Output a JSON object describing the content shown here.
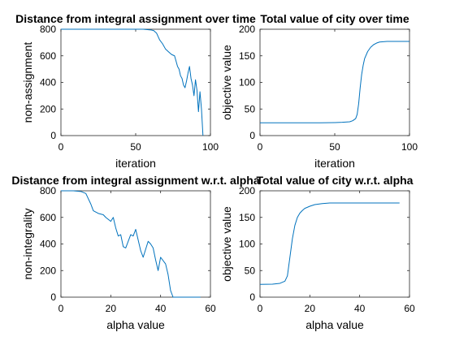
{
  "colors": {
    "series": "#0072BD",
    "axes": "#262626",
    "background": "#ffffff"
  },
  "chart_data": [
    {
      "type": "line",
      "title": "Distance from integral assignment over time",
      "xlabel": "iteration",
      "ylabel": "non-assignment",
      "xlim": [
        0,
        100
      ],
      "ylim": [
        0,
        800
      ],
      "xticks": [
        0,
        50,
        100
      ],
      "yticks": [
        0,
        200,
        400,
        600,
        800
      ],
      "grid": false,
      "x": [
        0,
        10,
        20,
        30,
        40,
        50,
        55,
        60,
        62,
        64,
        66,
        68,
        70,
        72,
        74,
        76,
        77,
        78,
        79,
        80,
        81,
        82,
        83,
        84,
        85,
        86,
        87,
        88,
        89,
        90,
        91,
        92,
        93,
        94,
        95
      ],
      "y": [
        800,
        800,
        800,
        800,
        800,
        800,
        800,
        795,
        790,
        770,
        720,
        690,
        650,
        630,
        610,
        600,
        560,
        520,
        500,
        450,
        430,
        380,
        360,
        410,
        470,
        520,
        430,
        380,
        300,
        420,
        340,
        180,
        330,
        200,
        0
      ]
    },
    {
      "type": "line",
      "title": "Total value of city over time",
      "xlabel": "iteration",
      "ylabel": "objective value",
      "xlim": [
        0,
        100
      ],
      "ylim": [
        0,
        200
      ],
      "xticks": [
        0,
        50,
        100
      ],
      "yticks": [
        0,
        50,
        100,
        150,
        200
      ],
      "grid": false,
      "x": [
        0,
        10,
        20,
        30,
        40,
        50,
        55,
        60,
        62,
        64,
        65,
        66,
        67,
        68,
        69,
        70,
        72,
        74,
        76,
        78,
        80,
        85,
        90,
        95,
        100
      ],
      "y": [
        24,
        24,
        24,
        24,
        24,
        24.5,
        25,
        26,
        28,
        32,
        40,
        60,
        90,
        115,
        132,
        145,
        158,
        166,
        171,
        174,
        176,
        177,
        177,
        177,
        177
      ]
    },
    {
      "type": "line",
      "title": "Distance from integral assignment w.r.t. alpha",
      "xlabel": "alpha value",
      "ylabel": "non-integrality",
      "xlim": [
        0,
        60
      ],
      "ylim": [
        0,
        800
      ],
      "xticks": [
        0,
        20,
        40,
        60
      ],
      "yticks": [
        0,
        200,
        400,
        600,
        800
      ],
      "grid": false,
      "x": [
        0,
        5,
        8,
        10,
        12,
        13,
        15,
        17,
        18,
        20,
        21,
        22,
        23,
        24,
        25,
        26,
        27,
        28,
        29,
        30,
        31,
        32,
        33,
        35,
        36,
        37,
        38,
        39,
        40,
        42,
        43,
        44,
        45,
        50,
        56
      ],
      "y": [
        800,
        800,
        795,
        780,
        700,
        650,
        630,
        620,
        600,
        570,
        600,
        520,
        460,
        470,
        380,
        370,
        420,
        470,
        460,
        510,
        430,
        350,
        300,
        420,
        400,
        370,
        280,
        200,
        300,
        250,
        170,
        50,
        0,
        0,
        0
      ]
    },
    {
      "type": "line",
      "title": "Total value of city w.r.t. alpha",
      "xlabel": "alpha value",
      "ylabel": "objective value",
      "xlim": [
        0,
        60
      ],
      "ylim": [
        0,
        200
      ],
      "xticks": [
        0,
        20,
        40,
        60
      ],
      "yticks": [
        0,
        50,
        100,
        150,
        200
      ],
      "grid": false,
      "x": [
        0,
        5,
        8,
        10,
        11,
        12,
        13,
        14,
        15,
        16,
        17,
        18,
        20,
        22,
        25,
        28,
        30,
        35,
        40,
        45,
        50,
        56
      ],
      "y": [
        24,
        24.5,
        26,
        30,
        40,
        75,
        110,
        135,
        150,
        158,
        163,
        167,
        171,
        174,
        176,
        177,
        177,
        177,
        177,
        177,
        177,
        177
      ]
    }
  ]
}
